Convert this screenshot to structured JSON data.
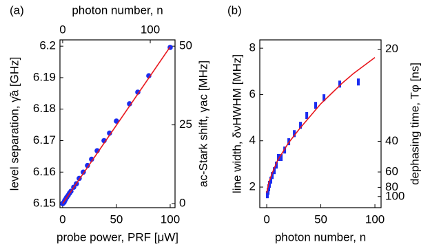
{
  "chart_data": [
    {
      "type": "scatter",
      "panel_label": "(a)",
      "xlabel": "probe power, PRF [μW]",
      "ylabel": "level separation, γ̃a  [GHz]",
      "x2label": "photon number, n",
      "y2label": "ac-Stark shift, γac  [MHz]",
      "xlim": [
        -2.5,
        104.5
      ],
      "xticks": [
        0,
        50,
        100
      ],
      "ylim": [
        6.1487,
        6.202
      ],
      "yticks": [
        6.15,
        6.16,
        6.17,
        6.18,
        6.19,
        6.2
      ],
      "x2lim": [
        -3.1,
        128.3
      ],
      "x2ticks": [
        0,
        100
      ],
      "y2lim": [
        -1.3,
        52
      ],
      "y2ticks": [
        0,
        25,
        50
      ],
      "series": [
        {
          "style": "markers",
          "color": "#1a2cf0",
          "x": [
            0,
            0.6,
            1.3,
            1.9,
            2.6,
            3.8,
            5.1,
            6.4,
            7.7,
            10.3,
            12.8,
            15.4,
            19.2,
            23.1,
            26.9,
            32.1,
            38.5,
            43.6,
            50,
            62.2,
            69.9,
            80.1,
            100
          ],
          "values": [
            6.15,
            6.1502,
            6.1504,
            6.1509,
            6.1513,
            6.152,
            6.1526,
            6.1533,
            6.1539,
            6.1552,
            6.1563,
            6.158,
            6.16,
            6.1621,
            6.1641,
            6.1668,
            6.17,
            6.1724,
            6.1762,
            6.1817,
            6.1854,
            6.1906,
            6.1996
          ]
        },
        {
          "style": "line",
          "color": "#e8151b",
          "x": [
            0,
            100
          ],
          "values": [
            6.15,
            6.1998
          ]
        }
      ]
    },
    {
      "type": "errorbar",
      "panel_label": "(b)",
      "xlabel": "photon number, n",
      "ylabel": "line width, δνHWHM [MHz]",
      "y2label": "dephasing time, Tφ  [ns]",
      "xlim": [
        -6.4,
        105.7
      ],
      "xticks": [
        0,
        50,
        100
      ],
      "ylim": [
        1.11,
        8.36
      ],
      "yticks": [
        2,
        4,
        6,
        8
      ],
      "y2lim": [
        143.4,
        19.04
      ],
      "y2scale": "reciprocal",
      "y2ticks": [
        20,
        40,
        60,
        80,
        100
      ],
      "series": [
        {
          "style": "errorbars",
          "color": "#1a2cf0",
          "x": [
            0.6,
            1.3,
            1.9,
            2.5,
            3.8,
            5.1,
            7,
            8.9,
            10.8,
            13.4,
            16.6,
            20.4,
            25.5,
            31.2,
            37,
            45.2,
            52.9,
            67.5,
            84.7
          ],
          "values": [
            1.67,
            1.82,
            1.97,
            2.12,
            2.3,
            2.5,
            2.71,
            2.95,
            3.28,
            3.28,
            3.6,
            3.96,
            4.31,
            4.67,
            5.09,
            5.53,
            5.86,
            6.45,
            6.54
          ],
          "errors": [
            0.15,
            0.15,
            0.15,
            0.15,
            0.15,
            0.15,
            0.15,
            0.15,
            0.15,
            0.15,
            0.15,
            0.15,
            0.15,
            0.15,
            0.15,
            0.15,
            0.15,
            0.15,
            0.15
          ]
        },
        {
          "style": "line",
          "color": "#e8151b",
          "x": [
            0,
            2,
            5,
            10,
            20,
            30,
            40,
            50,
            60,
            70,
            80,
            90,
            100
          ],
          "values": [
            1.75,
            2.2,
            2.6,
            3.15,
            3.9,
            4.5,
            5.05,
            5.6,
            6.05,
            6.5,
            6.9,
            7.25,
            7.6
          ]
        }
      ]
    }
  ]
}
